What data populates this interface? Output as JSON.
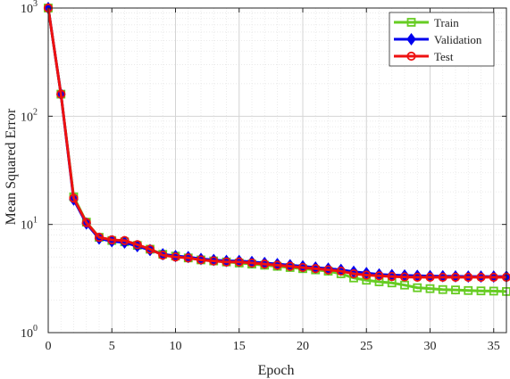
{
  "chart_data": {
    "type": "line",
    "title": "",
    "xlabel": "Epoch",
    "ylabel": "Mean Squared Error",
    "yscale": "log",
    "xlim": [
      0,
      36
    ],
    "ylim": [
      1,
      1000
    ],
    "xticks": [
      "0",
      "5",
      "10",
      "15",
      "20",
      "25",
      "30",
      "35"
    ],
    "xtick_values": [
      0,
      5,
      10,
      15,
      20,
      25,
      30,
      35
    ],
    "yticks": [
      {
        "value": 1,
        "base": "10",
        "exp": "0"
      },
      {
        "value": 10,
        "base": "10",
        "exp": "1"
      },
      {
        "value": 100,
        "base": "10",
        "exp": "2"
      },
      {
        "value": 1000,
        "base": "10",
        "exp": "3"
      }
    ],
    "grid": true,
    "minor_grid": true,
    "legend_position": "top-right",
    "x": [
      0,
      1,
      2,
      3,
      4,
      5,
      6,
      7,
      8,
      9,
      10,
      11,
      12,
      13,
      14,
      15,
      16,
      17,
      18,
      19,
      20,
      21,
      22,
      23,
      24,
      25,
      26,
      27,
      28,
      29,
      30,
      31,
      32,
      33,
      34,
      35,
      36
    ],
    "series": [
      {
        "name": "Train",
        "color": "#66cc22",
        "marker": "square",
        "values": [
          1000,
          160,
          18,
          10.5,
          7.6,
          7.1,
          6.9,
          6.4,
          5.9,
          5.3,
          5.1,
          4.9,
          4.7,
          4.6,
          4.5,
          4.4,
          4.3,
          4.2,
          4.1,
          4.0,
          3.9,
          3.8,
          3.7,
          3.5,
          3.2,
          3.05,
          2.95,
          2.88,
          2.75,
          2.6,
          2.55,
          2.5,
          2.48,
          2.45,
          2.43,
          2.42,
          2.4
        ]
      },
      {
        "name": "Validation",
        "color": "#0000ee",
        "marker": "diamond",
        "values": [
          1000,
          160,
          17,
          10.2,
          7.4,
          7.0,
          6.8,
          6.3,
          5.8,
          5.3,
          5.1,
          5.0,
          4.8,
          4.7,
          4.6,
          4.6,
          4.5,
          4.4,
          4.3,
          4.2,
          4.1,
          4.0,
          3.9,
          3.8,
          3.65,
          3.55,
          3.45,
          3.4,
          3.38,
          3.35,
          3.33,
          3.32,
          3.31,
          3.3,
          3.3,
          3.3,
          3.3
        ]
      },
      {
        "name": "Test",
        "color": "#ee1111",
        "marker": "circle",
        "values": [
          1000,
          160,
          17.5,
          10.4,
          7.6,
          7.2,
          7.1,
          6.5,
          5.9,
          5.2,
          5.0,
          4.9,
          4.7,
          4.6,
          4.5,
          4.5,
          4.4,
          4.3,
          4.2,
          4.1,
          4.0,
          3.9,
          3.8,
          3.7,
          3.5,
          3.4,
          3.35,
          3.3,
          3.27,
          3.25,
          3.25,
          3.25,
          3.25,
          3.25,
          3.25,
          3.25,
          3.25
        ]
      }
    ]
  }
}
